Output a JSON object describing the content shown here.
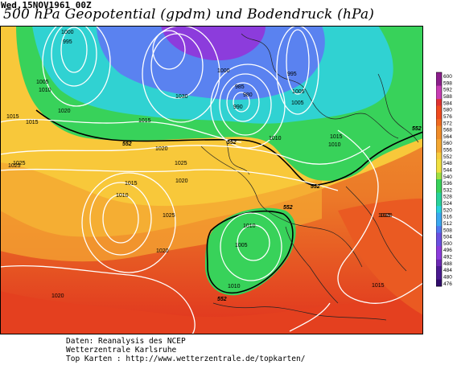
{
  "header": {
    "date": "Wed,15NOV1961 00Z",
    "title": "500 hPa Geopotential (gpdm) und Bodendruck (hPa)"
  },
  "legend": {
    "values": [
      "600",
      "598",
      "592",
      "588",
      "584",
      "580",
      "576",
      "572",
      "568",
      "564",
      "560",
      "556",
      "552",
      "548",
      "544",
      "540",
      "536",
      "532",
      "528",
      "524",
      "520",
      "516",
      "512",
      "508",
      "504",
      "500",
      "496",
      "492",
      "488",
      "484",
      "480",
      "476"
    ]
  },
  "map": {
    "pressure_labels": [
      "1000",
      "995",
      "1005",
      "1010",
      "1015",
      "1020",
      "1025",
      "1030",
      "990",
      "985",
      "980",
      "1000",
      "995",
      "1005",
      "1010",
      "1015",
      "1020",
      "1025",
      "1010",
      "1015",
      "1010",
      "1005",
      "1010",
      "1020",
      "1015",
      "1020",
      "1025",
      "1020",
      "1020",
      "1025",
      "1015",
      "1010",
      "1005",
      "1015",
      "1020"
    ],
    "isohypse_labels": [
      "552",
      "552",
      "552",
      "552",
      "552",
      "552"
    ]
  },
  "footer": {
    "line1": "Daten: Reanalysis des NCEP",
    "line2": "Wetterzentrale Karlsruhe",
    "line3": "Top Karten  :  http://www.wetterzentrale.de/topkarten/"
  },
  "colors": {
    "red": "#e0321e",
    "orange": "#f08c28",
    "yellow": "#f8cc3c",
    "green": "#2ed25a",
    "cyan": "#28d2dc",
    "blue": "#5078f0",
    "purple": "#8c3cdc"
  }
}
